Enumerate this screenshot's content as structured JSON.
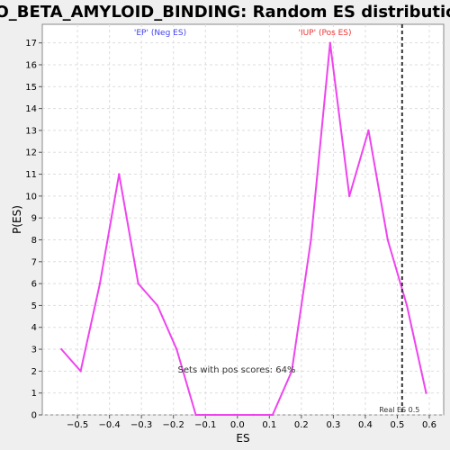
{
  "chart_data": {
    "type": "line",
    "title": "GO_BETA_AMYLOID_BINDING: Random ES distribution",
    "xlabel": "ES",
    "ylabel": "P(ES)",
    "xlim": [
      -0.61,
      0.645
    ],
    "ylim": [
      0,
      17.85
    ],
    "x_ticks": [
      -0.5,
      -0.4,
      -0.3,
      -0.2,
      -0.1,
      0.0,
      0.1,
      0.2,
      0.3,
      0.4,
      0.5,
      0.6
    ],
    "x_tick_labels": [
      "−0.5",
      "−0.4",
      "−0.3",
      "−0.2",
      "−0.1",
      "0.0",
      "0.1",
      "0.2",
      "0.3",
      "0.4",
      "0.5",
      "0.6"
    ],
    "y_ticks": [
      0,
      1,
      2,
      3,
      4,
      5,
      6,
      7,
      8,
      9,
      10,
      11,
      12,
      13,
      14,
      15,
      16,
      17
    ],
    "grid": true,
    "series": [
      {
        "color": "#ee44ee",
        "x": [
          -0.55,
          -0.49,
          -0.43,
          -0.37,
          -0.31,
          -0.25,
          -0.19,
          -0.13,
          -0.07,
          -0.01,
          0.05,
          0.11,
          0.17,
          0.23,
          0.29,
          0.35,
          0.41,
          0.47,
          0.53,
          0.59
        ],
        "y": [
          3,
          2,
          6,
          11,
          6,
          5,
          3,
          0,
          0,
          0,
          0,
          0,
          2,
          8,
          17,
          10,
          13,
          8,
          5,
          1
        ]
      }
    ],
    "vline": {
      "x": 0.515,
      "label": "Real ES 0.5",
      "color": "#333333"
    },
    "annotations": {
      "neg_label": "'EP' (Neg ES)",
      "neg_color": "#4444ee",
      "pos_label": "'IUP' (Pos ES)",
      "pos_color": "#ee3333",
      "pos_scores": "Sets with pos scores: 64%"
    }
  }
}
